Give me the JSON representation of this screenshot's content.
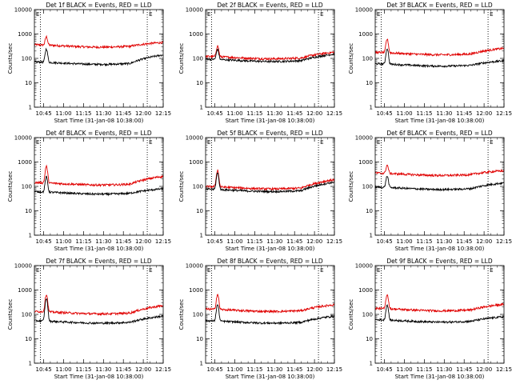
{
  "figure": {
    "title_template": "Det {id} BLACK = Events, RED = LLD",
    "xlabel": "Start Time (31-Jan-08 10:38:00)",
    "ylabel": "Counts/sec"
  },
  "chart_data": {
    "type": "line",
    "x_tick_labels": [
      "10:45",
      "11:00",
      "11:15",
      "11:30",
      "11:45",
      "12:00",
      "12:15"
    ],
    "x_range_minutes": [
      0,
      97
    ],
    "x_tick_minutes": [
      7,
      22,
      37,
      52,
      67,
      82,
      97
    ],
    "y_scale": "log",
    "y_range": [
      1,
      10000
    ],
    "y_tick_labels": [
      "1",
      "10",
      "100",
      "1000",
      "10000"
    ],
    "y_tick_values": [
      1,
      10,
      100,
      1000,
      10000
    ],
    "markers": {
      "left_dotted_minute": 4.5,
      "right_dotted_minute": 85,
      "corner_labels": [
        "E",
        "E"
      ]
    },
    "colors": {
      "events": "#000000",
      "lld": "#e00000"
    },
    "series_names": [
      "Events",
      "LLD"
    ],
    "panels": [
      {
        "id": "1f",
        "events": {
          "base": 65,
          "peak": 240,
          "end": 140
        },
        "lld": {
          "base": 330,
          "peak": 750,
          "end": 450
        }
      },
      {
        "id": "2f",
        "events": {
          "base": 85,
          "peak": 230,
          "end": 150
        },
        "lld": {
          "base": 110,
          "peak": 320,
          "end": 180
        }
      },
      {
        "id": "3f",
        "events": {
          "base": 55,
          "peak": 250,
          "end": 80
        },
        "lld": {
          "base": 160,
          "peak": 600,
          "end": 260
        }
      },
      {
        "id": "4f",
        "events": {
          "base": 55,
          "peak": 240,
          "end": 80
        },
        "lld": {
          "base": 130,
          "peak": 650,
          "end": 260
        }
      },
      {
        "id": "5f",
        "events": {
          "base": 70,
          "peak": 350,
          "end": 150
        },
        "lld": {
          "base": 90,
          "peak": 450,
          "end": 190
        }
      },
      {
        "id": "6f",
        "events": {
          "base": 85,
          "peak": 260,
          "end": 140
        },
        "lld": {
          "base": 320,
          "peak": 720,
          "end": 440
        }
      },
      {
        "id": "7f",
        "events": {
          "base": 50,
          "peak": 450,
          "end": 85
        },
        "lld": {
          "base": 120,
          "peak": 650,
          "end": 230
        }
      },
      {
        "id": "8f",
        "events": {
          "base": 50,
          "peak": 250,
          "end": 85
        },
        "lld": {
          "base": 150,
          "peak": 650,
          "end": 250
        }
      },
      {
        "id": "9f",
        "events": {
          "base": 55,
          "peak": 240,
          "end": 80
        },
        "lld": {
          "base": 160,
          "peak": 650,
          "end": 260
        }
      }
    ]
  }
}
